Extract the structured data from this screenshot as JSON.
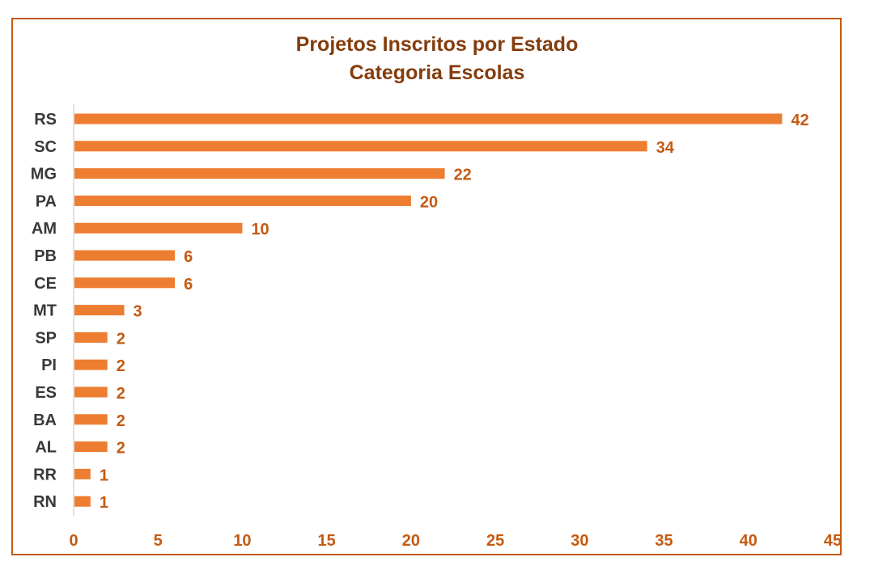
{
  "chart_data": {
    "type": "bar",
    "orientation": "horizontal",
    "title": "Projetos Inscritos por Estado",
    "subtitle": "Categoria Escolas",
    "categories": [
      "RS",
      "SC",
      "MG",
      "PA",
      "AM",
      "PB",
      "CE",
      "MT",
      "SP",
      "PI",
      "ES",
      "BA",
      "AL",
      "RR",
      "RN"
    ],
    "values": [
      42,
      34,
      22,
      20,
      10,
      6,
      6,
      3,
      2,
      2,
      2,
      2,
      2,
      1,
      1
    ],
    "xlim": [
      0,
      45
    ],
    "xticks": [
      0,
      5,
      10,
      15,
      20,
      25,
      30,
      35,
      40,
      45
    ],
    "grid": false,
    "legend": "none",
    "data_labels": true,
    "bar_color": "#ed7d31",
    "label_color": "#c55a11",
    "title_color": "#843c0c",
    "border_color": "#c55a11"
  }
}
